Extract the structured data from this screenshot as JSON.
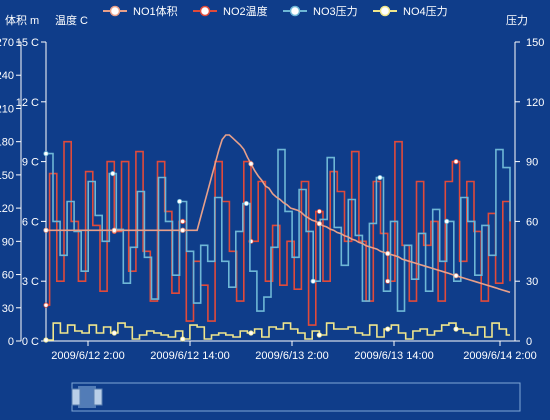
{
  "chart_data": {
    "type": "line",
    "axes": {
      "left_outer": {
        "label": "体积 m",
        "min": 0,
        "max": 270,
        "ticks": [
          "0",
          "30",
          "60",
          "90",
          "120",
          "150",
          "180",
          "210",
          "240",
          "270"
        ]
      },
      "left_inner": {
        "label": "温度 C",
        "min": 0,
        "max": 15,
        "ticks": [
          "0 C",
          "3 C",
          "6 C",
          "9 C",
          "12 C",
          "15 C"
        ]
      },
      "right": {
        "label": "压力",
        "min": 0,
        "max": 150,
        "ticks": [
          "0",
          "30",
          "60",
          "90",
          "120",
          "150"
        ]
      },
      "x": {
        "ticks": [
          "2009/6/12 2:00",
          "2009/6/12 14:00",
          "2009/6/13 2:00",
          "2009/6/13 14:00",
          "2009/6/14 2:00"
        ]
      }
    },
    "series": [
      {
        "name": "NO1体积",
        "color": "#e8a08a",
        "axis": "left_outer",
        "step": false,
        "values": [
          100,
          100,
          100,
          100,
          100,
          100,
          100,
          100,
          100,
          100,
          100,
          100,
          100,
          100,
          100,
          100,
          100,
          100,
          100,
          100,
          100,
          100,
          100,
          100,
          100,
          100,
          100,
          100,
          100,
          100,
          100,
          100,
          100,
          100,
          100,
          100,
          100,
          100,
          100,
          100,
          100,
          100,
          100,
          112,
          124,
          136,
          148,
          160,
          172,
          182,
          186,
          186,
          183,
          180,
          177,
          173,
          166,
          160,
          154,
          149,
          145,
          140,
          138,
          133,
          130,
          128,
          125,
          123,
          120,
          119,
          118,
          116,
          113,
          111,
          109,
          108,
          106,
          104,
          103,
          101,
          100,
          98,
          97,
          95,
          94,
          92,
          91,
          89,
          88,
          86,
          85,
          84,
          83,
          81,
          80,
          79,
          78,
          77,
          76,
          74,
          73,
          72,
          71,
          70,
          69,
          68,
          67,
          66,
          65,
          64,
          63,
          62,
          61,
          60,
          59,
          58,
          57,
          56,
          55,
          54,
          53,
          52,
          51,
          50,
          49,
          48,
          47,
          46,
          45,
          44
        ]
      },
      {
        "name": "NO2温度",
        "color": "#e04a3a",
        "axis": "left_inner",
        "step": true,
        "values": [
          1.8,
          8.4,
          8.4,
          3.0,
          3.0,
          10.0,
          10.0,
          6.0,
          6.0,
          3.0,
          3.0,
          8.5,
          8.5,
          5.8,
          5.8,
          2.5,
          2.5,
          9.0,
          9.0,
          5.5,
          5.5,
          9.0,
          9.0,
          3.5,
          3.5,
          9.5,
          9.5,
          4.5,
          4.5,
          2.0,
          2.0,
          9.0,
          9.0,
          6.5,
          6.5,
          2.4,
          2.4,
          6.0,
          6.0,
          1.0,
          1.0,
          4.0,
          4.0,
          2.8,
          2.8,
          1.0,
          1.0,
          9.0,
          9.0,
          7.0,
          7.0,
          4.5,
          4.5,
          2.0,
          2.0,
          9.0,
          9.0,
          5.0,
          5.0,
          8.0,
          8.0,
          3.0,
          3.0,
          5.8,
          5.8,
          2.8,
          2.8,
          5.0,
          5.0,
          2.6,
          2.6,
          8.0,
          8.0,
          0.8,
          0.8,
          6.5,
          6.5,
          3.0,
          3.0,
          8.5,
          8.5,
          7.5,
          7.5,
          5.0,
          5.0,
          9.5,
          9.5,
          5.0,
          5.0,
          2.0,
          2.0,
          8.0,
          8.0,
          5.4,
          5.4,
          3.0,
          3.0,
          10.0,
          10.0,
          4.8,
          4.8,
          2.0,
          2.0,
          8.0,
          8.0,
          4.8,
          4.8,
          6.0,
          6.0,
          2.0,
          2.0,
          8.0,
          8.0,
          9.0,
          9.0,
          4.0,
          4.0,
          8.0,
          8.0,
          5.5,
          5.5,
          2.0,
          2.0,
          6.4,
          6.4,
          2.9,
          2.9,
          7.0,
          7.0,
          3.0
        ]
      },
      {
        "name": "NO3压力",
        "color": "#6eb7d6",
        "axis": "right",
        "step": true,
        "values": [
          94,
          94,
          60,
          60,
          43,
          43,
          70,
          70,
          55,
          55,
          35,
          35,
          80,
          80,
          63,
          63,
          50,
          50,
          84,
          84,
          56,
          56,
          29,
          29,
          47,
          47,
          75,
          75,
          42,
          42,
          21,
          21,
          82,
          82,
          60,
          60,
          33,
          33,
          70,
          70,
          45,
          45,
          19,
          19,
          48,
          48,
          40,
          40,
          72,
          72,
          40,
          40,
          27,
          27,
          55,
          55,
          69,
          69,
          35,
          35,
          15,
          15,
          22,
          22,
          47,
          47,
          96,
          96,
          65,
          65,
          42,
          42,
          76,
          76,
          55,
          55,
          30,
          30,
          61,
          61,
          92,
          92,
          57,
          57,
          38,
          38,
          71,
          71,
          53,
          53,
          20,
          20,
          59,
          59,
          82,
          82,
          25,
          25,
          60,
          60,
          15,
          15,
          48,
          48,
          31,
          31,
          54,
          54,
          25,
          25,
          66,
          66,
          40,
          40,
          60,
          60,
          30,
          30,
          72,
          72,
          60,
          60,
          33,
          33,
          58,
          58,
          43,
          43,
          96,
          96,
          87,
          87,
          60
        ]
      },
      {
        "name": "NO4压力",
        "color": "#f0e68c",
        "axis": "right",
        "step": true,
        "values": [
          0.5,
          0.5,
          9,
          9,
          4,
          4,
          8,
          8,
          5,
          5,
          4,
          4,
          8,
          8,
          4,
          4,
          7,
          7,
          4,
          4,
          9,
          9,
          7,
          7,
          1,
          1,
          3,
          3,
          5,
          5,
          4,
          4,
          3,
          3,
          2,
          2,
          5,
          5,
          1,
          1,
          8,
          8,
          7,
          7,
          1,
          1,
          3,
          3,
          4,
          4,
          3,
          3,
          2,
          2,
          5,
          5,
          4,
          4,
          6,
          6,
          2,
          2,
          7,
          7,
          6,
          6,
          9,
          9,
          6,
          6,
          4,
          4,
          1,
          1,
          5,
          5,
          3,
          3,
          9,
          9,
          6,
          6,
          6,
          6,
          7,
          7,
          4,
          4,
          3,
          3,
          8,
          8,
          2,
          2,
          6,
          6,
          8,
          8,
          4,
          4,
          1,
          1,
          5,
          5,
          6,
          6,
          3,
          3,
          5,
          5,
          8,
          8,
          9,
          9,
          6,
          6,
          4,
          4,
          3,
          3,
          7,
          7,
          2,
          2,
          9,
          9,
          6,
          6,
          3,
          3
        ]
      }
    ],
    "x_range": [
      "2009/6/12 0:00",
      "2009/6/14 2:20"
    ]
  }
}
